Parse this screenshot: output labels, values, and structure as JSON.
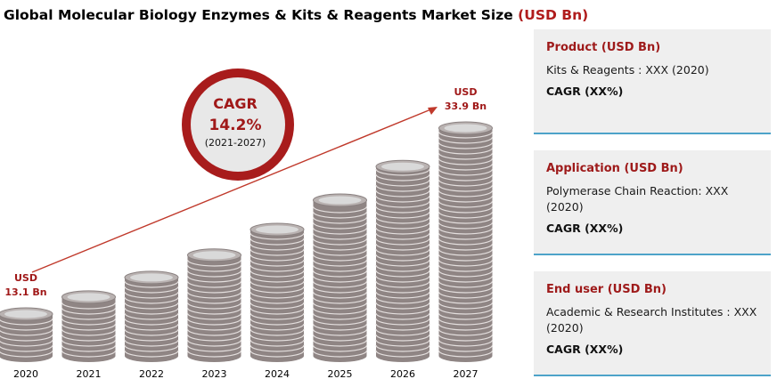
{
  "title": {
    "main": "Global Molecular Biology Enzymes & Kits & Reagents Market Size",
    "unit": "(USD Bn)"
  },
  "cagr_badge": {
    "label": "CAGR",
    "value": "14.2%",
    "period": "(2021-2027)"
  },
  "chart_data": {
    "type": "bar",
    "categories": [
      "2020",
      "2021",
      "2022",
      "2023",
      "2024",
      "2025",
      "2026",
      "2027"
    ],
    "values": [
      13.1,
      null,
      null,
      null,
      null,
      null,
      null,
      33.9
    ],
    "data_labels": [
      {
        "category": "2020",
        "currency": "USD",
        "text": "13.1 Bn"
      },
      {
        "category": "2027",
        "currency": "USD",
        "text": "33.9 Bn"
      }
    ],
    "colors": {
      "coin": "#8f8584",
      "coin_top": "#d9d9d9",
      "accent": "#a01818",
      "arrow": "#c0392b"
    }
  },
  "panels": [
    {
      "title": "Product (USD Bn)",
      "detail": "Kits & Reagents : XXX (2020)",
      "cagr": "CAGR (XX%)"
    },
    {
      "title": "Application (USD Bn)",
      "detail": "Polymerase Chain Reaction: XXX (2020)",
      "cagr": "CAGR (XX%)"
    },
    {
      "title": "End user (USD Bn)",
      "detail": "Academic & Research Institutes : XXX (2020)",
      "cagr": "CAGR (XX%)"
    }
  ],
  "colors": {
    "panel_bg": "#efefef",
    "panel_border": "#4da3c9",
    "title_accent": "#b01c1c"
  }
}
